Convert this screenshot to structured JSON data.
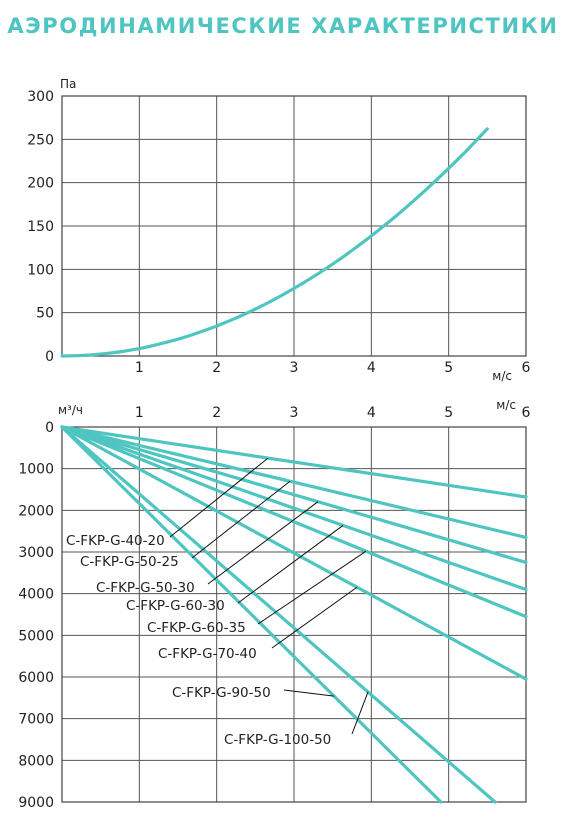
{
  "title": "АЭРОДИНАМИЧЕСКИЕ ХАРАКТЕРИСТИКИ",
  "colors": {
    "accent": "#4ec5c1",
    "grid": "#555555",
    "text": "#222222"
  },
  "chart_data": [
    {
      "type": "line",
      "ylabel": "Па",
      "xlabel": "м/с",
      "xlim": [
        0,
        6
      ],
      "ylim": [
        0,
        300
      ],
      "xticks": [
        "1",
        "2",
        "3",
        "4",
        "5",
        "6"
      ],
      "yticks": [
        "0",
        "50",
        "100",
        "150",
        "200",
        "250",
        "300"
      ],
      "grid": true,
      "series": [
        {
          "x": [
            0,
            0.5,
            1,
            1.5,
            2,
            2.5,
            3,
            3.5,
            4,
            4.5,
            5,
            5.5
          ],
          "y": [
            0,
            2,
            9,
            20,
            35,
            55,
            78,
            107,
            140,
            177,
            218,
            262
          ]
        }
      ]
    },
    {
      "type": "line",
      "ylabel": "м³/ч",
      "xlabel": "м/с",
      "xlim": [
        0,
        6
      ],
      "ylim": [
        0,
        9000
      ],
      "y_inverted": true,
      "x_axis_position": "top",
      "xticks": [
        "1",
        "2",
        "3",
        "4",
        "5",
        "6"
      ],
      "yticks": [
        "0",
        "1000",
        "2000",
        "3000",
        "4000",
        "5000",
        "6000",
        "7000",
        "8000",
        "9000"
      ],
      "grid": true,
      "series": [
        {
          "name": "C-FKP-G-40-20",
          "x": [
            0,
            6
          ],
          "y": [
            0,
            1680
          ]
        },
        {
          "name": "C-FKP-G-50-25",
          "x": [
            0,
            6
          ],
          "y": [
            0,
            2650
          ]
        },
        {
          "name": "C-FKP-G-50-30",
          "x": [
            0,
            6
          ],
          "y": [
            0,
            3250
          ]
        },
        {
          "name": "C-FKP-G-60-30",
          "x": [
            0,
            6
          ],
          "y": [
            0,
            3900
          ]
        },
        {
          "name": "C-FKP-G-60-35",
          "x": [
            0,
            6
          ],
          "y": [
            0,
            4550
          ]
        },
        {
          "name": "C-FKP-G-70-40",
          "x": [
            0,
            6
          ],
          "y": [
            0,
            6050
          ]
        },
        {
          "name": "C-FKP-G-90-50",
          "x": [
            0,
            4.9
          ],
          "y": [
            0,
            9000
          ]
        },
        {
          "name": "C-FKP-G-100-50",
          "x": [
            0,
            5.6
          ],
          "y": [
            0,
            9000
          ]
        }
      ]
    }
  ]
}
